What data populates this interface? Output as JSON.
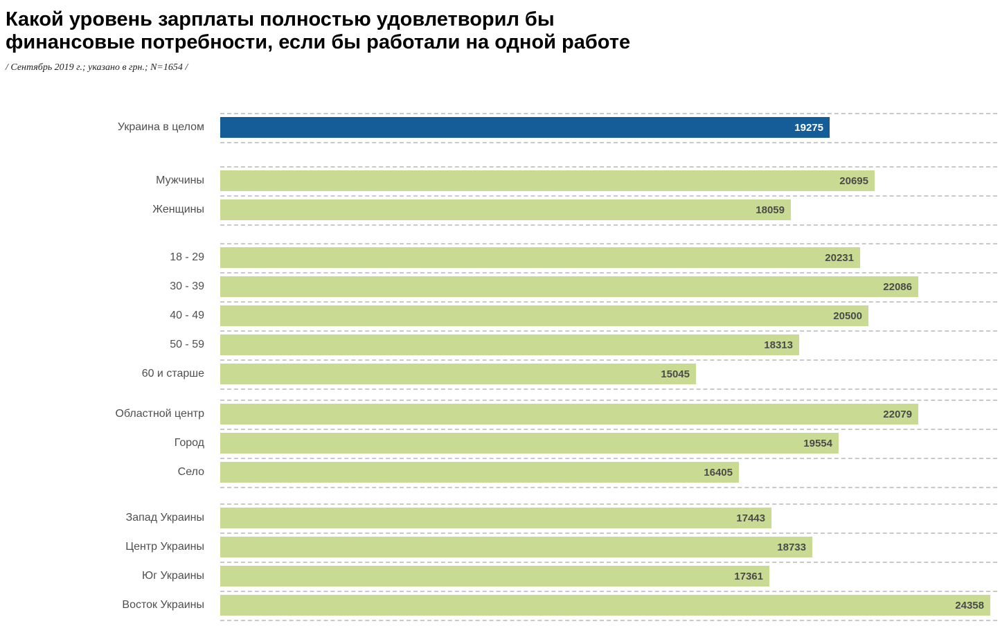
{
  "header": {
    "title_line1": "Какой уровень зарплаты полностью удовлетворил бы",
    "title_line2": "финансовые потребности, если бы работали на одной работе",
    "subtitle": "/ Сентябрь 2019  г.; указано в грн.; N=1654 /"
  },
  "chart_data": {
    "type": "bar",
    "orientation": "horizontal",
    "title": "Какой уровень зарплаты полностью удовлетворил бы финансовые потребности, если бы работали на одной работе",
    "subtitle": "/ Сентябрь 2019 г.; указано в грн.; N=1654 /",
    "unit": "грн",
    "sample_size": "N=1654",
    "grid": "dashed gray separator line above and below each bar, spanning full plot width",
    "legend": "none",
    "value_labels": "printed inside right end of each bar",
    "colors": {
      "highlight_bar": "#155d99",
      "bar": "#c9db93",
      "value_on_highlight": "#ffffff",
      "value_on_bar": "#4a4a4a",
      "gridline": "#c9c9c9",
      "category_label": "#4f4f4f"
    },
    "groups": [
      {
        "name": "total",
        "items": [
          {
            "label": "Украина в целом",
            "value": 19275,
            "highlight": true
          }
        ]
      },
      {
        "name": "gender",
        "items": [
          {
            "label": "Мужчины",
            "value": 20695
          },
          {
            "label": "Женщины",
            "value": 18059
          }
        ]
      },
      {
        "name": "age",
        "items": [
          {
            "label": "18 - 29",
            "value": 20231
          },
          {
            "label": "30 - 39",
            "value": 22086
          },
          {
            "label": "40 - 49",
            "value": 20500
          },
          {
            "label": "50 - 59",
            "value": 18313
          },
          {
            "label": "60 и старше",
            "value": 15045
          }
        ]
      },
      {
        "name": "settlement",
        "items": [
          {
            "label": "Областной центр",
            "value": 22079
          },
          {
            "label": "Город",
            "value": 19554
          },
          {
            "label": "Село",
            "value": 16405
          }
        ]
      },
      {
        "name": "region",
        "items": [
          {
            "label": "Запад Украины",
            "value": 17443
          },
          {
            "label": "Центр Украины",
            "value": 18733
          },
          {
            "label": "Юг Украины",
            "value": 17361
          },
          {
            "label": "Восток Украины",
            "value": 24358
          }
        ]
      }
    ]
  }
}
